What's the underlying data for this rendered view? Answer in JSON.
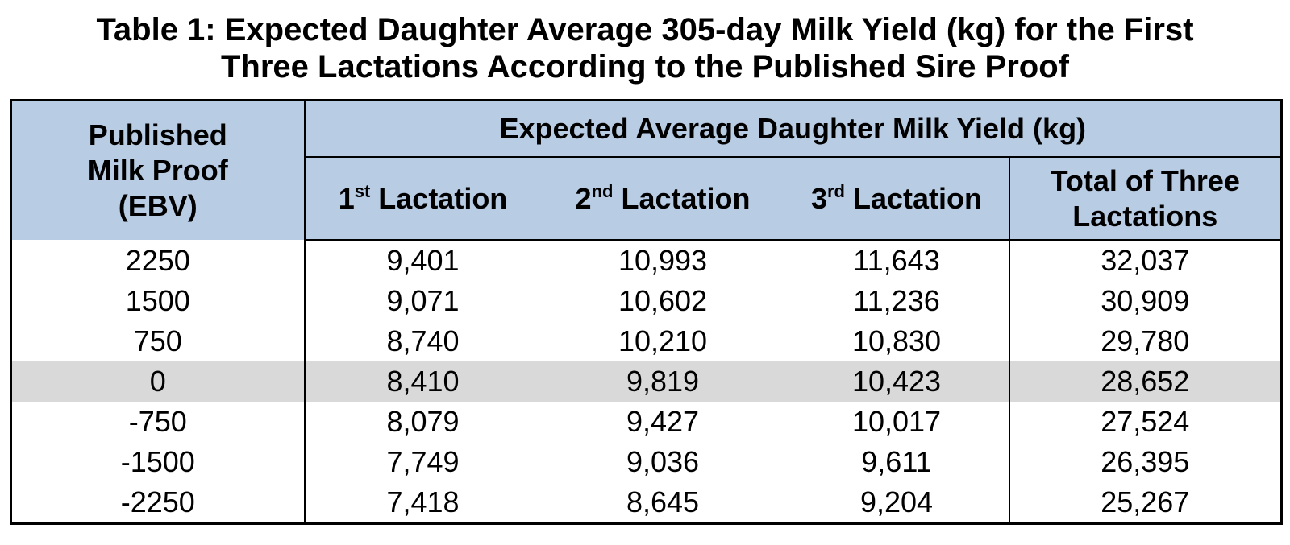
{
  "title": {
    "line1": "Table 1: Expected Daughter Average 305-day Milk Yield (kg) for the First",
    "line2": "Three Lactations According to the Published Sire Proof"
  },
  "header": {
    "proof_line1": "Published",
    "proof_line2": "Milk Proof",
    "proof_line3": "(EBV)",
    "group_label": "Expected Average Daughter Milk Yield (kg)",
    "lact1": {
      "num": "1",
      "sup": "st",
      "label": " Lactation"
    },
    "lact2": {
      "num": "2",
      "sup": "nd",
      "label": " Lactation"
    },
    "lact3": {
      "num": "3",
      "sup": "rd",
      "label": " Lactation"
    },
    "total_line1": "Total of Three",
    "total_line2": "Lactations"
  },
  "rows": [
    {
      "proof": "2250",
      "l1": "9,401",
      "l2": "10,993",
      "l3": "11,643",
      "total": "32,037"
    },
    {
      "proof": "1500",
      "l1": "9,071",
      "l2": "10,602",
      "l3": "11,236",
      "total": "30,909"
    },
    {
      "proof": "750",
      "l1": "8,740",
      "l2": "10,210",
      "l3": "10,830",
      "total": "29,780"
    },
    {
      "proof": "0",
      "l1": "8,410",
      "l2": "9,819",
      "l3": "10,423",
      "total": "28,652"
    },
    {
      "proof": "-750",
      "l1": "8,079",
      "l2": "9,427",
      "l3": "10,017",
      "total": "27,524"
    },
    {
      "proof": "-1500",
      "l1": "7,749",
      "l2": "9,036",
      "l3": "9,611",
      "total": "26,395"
    },
    {
      "proof": "-2250",
      "l1": "7,418",
      "l2": "8,645",
      "l3": "9,204",
      "total": "25,267"
    }
  ],
  "colors": {
    "header_bg": "#b8cce4",
    "highlight_bg": "#d9d9d9"
  }
}
